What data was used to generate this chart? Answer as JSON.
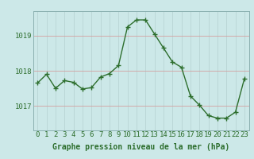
{
  "hours": [
    0,
    1,
    2,
    3,
    4,
    5,
    6,
    7,
    8,
    9,
    10,
    11,
    12,
    13,
    14,
    15,
    16,
    17,
    18,
    19,
    20,
    21,
    22,
    23
  ],
  "pressure": [
    1017.65,
    1017.9,
    1017.5,
    1017.72,
    1017.67,
    1017.48,
    1017.52,
    1017.82,
    1017.92,
    1018.15,
    1019.25,
    1019.45,
    1019.45,
    1019.05,
    1018.65,
    1018.25,
    1018.1,
    1017.28,
    1017.02,
    1016.72,
    1016.65,
    1016.65,
    1016.82,
    1017.78
  ],
  "ylim": [
    1016.3,
    1019.7
  ],
  "yticks": [
    1017.0,
    1018.0,
    1019.0
  ],
  "ytick_labels": [
    "1017",
    "1018",
    "1019"
  ],
  "xlabel": "Graphe pression niveau de la mer (hPa)",
  "bg_color": "#cce8e8",
  "line_color": "#2d6e2d",
  "vgrid_color": "#b8d4d4",
  "hgrid_color": "#d4a0a0",
  "xlabel_fontsize": 7.0,
  "tick_fontsize": 6.5,
  "linewidth": 1.0,
  "markersize": 4,
  "fig_width": 3.2,
  "fig_height": 2.0,
  "dpi": 100
}
